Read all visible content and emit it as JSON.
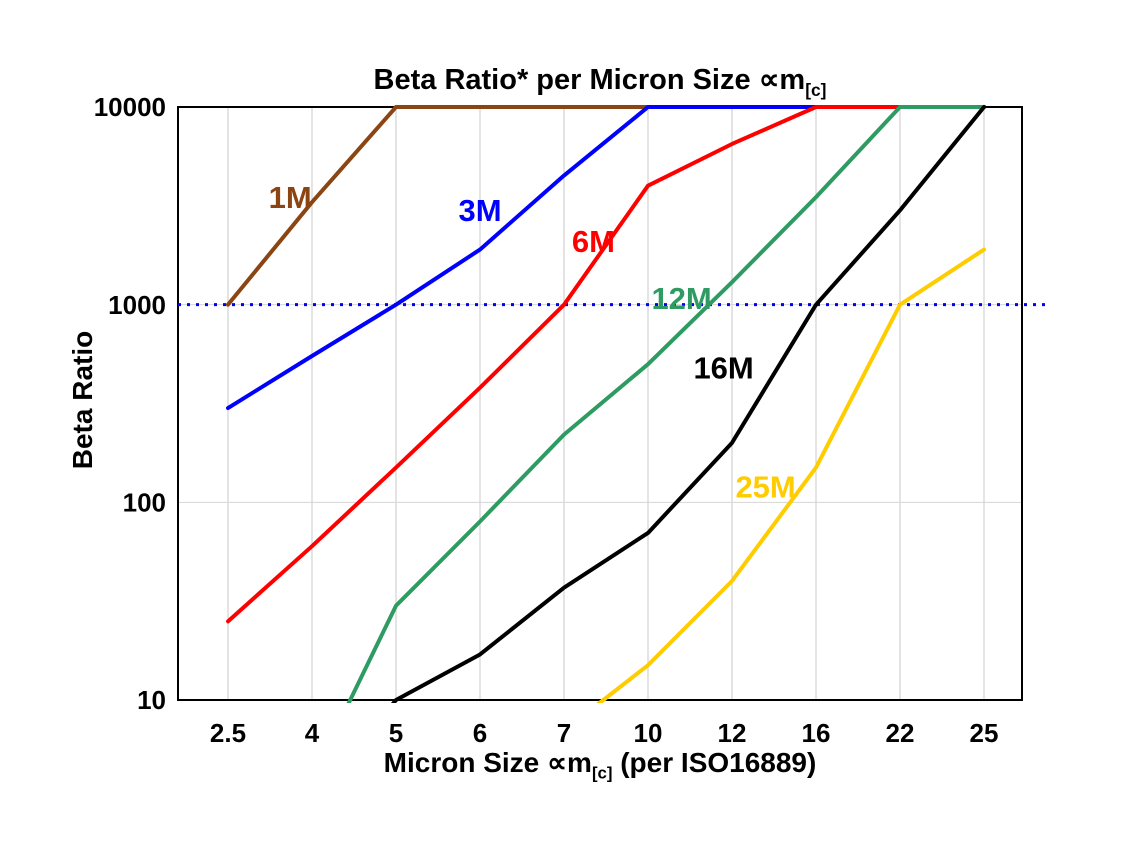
{
  "chart": {
    "title_pre": "Beta Ratio* per Micron Size ",
    "title_sym": "∝m",
    "title_sub": "[c]",
    "xlabel_pre": "Micron Size ",
    "xlabel_sym": "∝m",
    "xlabel_sub": "[c]",
    "xlabel_post": " (per ISO16889)",
    "ylabel": "Beta Ratio"
  },
  "chart_data": {
    "type": "line",
    "title": "Beta Ratio* per Micron Size ∝m[c]",
    "xlabel": "Micron Size ∝m[c] (per ISO16889)",
    "ylabel": "Beta Ratio",
    "x_type": "categorical",
    "categories": [
      "2.5",
      "4",
      "5",
      "6",
      "7",
      "10",
      "12",
      "16",
      "22",
      "25"
    ],
    "y_scale": "log",
    "ylim": [
      10,
      10000
    ],
    "y_ticks": [
      10,
      100,
      1000,
      10000
    ],
    "grid": {
      "vertical": true,
      "horizontal_at": [
        100,
        1000
      ]
    },
    "legend_position": "inline-labels",
    "reference_line": {
      "value": 1000,
      "color": "#0000ff",
      "style": "dotted"
    },
    "series": [
      {
        "name": "1M",
        "color": "#8B4513",
        "values": [
          1000,
          3300,
          10000,
          10000,
          10000,
          10000,
          10000,
          10000,
          10000,
          10000
        ],
        "label": {
          "xi": 0.74,
          "v": 3500
        }
      },
      {
        "name": "3M",
        "color": "#0000FF",
        "values": [
          300,
          550,
          1000,
          1900,
          4500,
          10000,
          10000,
          10000,
          10000,
          10000
        ],
        "label": {
          "xi": 3.0,
          "v": 3000
        }
      },
      {
        "name": "6M",
        "color": "#FF0000",
        "values": [
          25,
          60,
          150,
          380,
          1000,
          4000,
          6500,
          10000,
          10000,
          10000
        ],
        "label": {
          "xi": 4.35,
          "v": 2100
        }
      },
      {
        "name": "12M",
        "color": "#2E9B62",
        "values": [
          null,
          4,
          30,
          80,
          220,
          500,
          1300,
          3500,
          10000,
          10000
        ],
        "label": {
          "xi": 5.4,
          "v": 1080
        }
      },
      {
        "name": "16M",
        "color": "#000000",
        "values": [
          null,
          3,
          10,
          17,
          37,
          70,
          200,
          1000,
          3000,
          10000
        ],
        "label": {
          "xi": 5.9,
          "v": 480
        }
      },
      {
        "name": "25M",
        "color": "#FFCC00",
        "values": [
          null,
          null,
          null,
          null,
          7,
          15,
          40,
          150,
          1000,
          1900
        ],
        "label": {
          "xi": 6.4,
          "v": 120
        }
      }
    ]
  }
}
